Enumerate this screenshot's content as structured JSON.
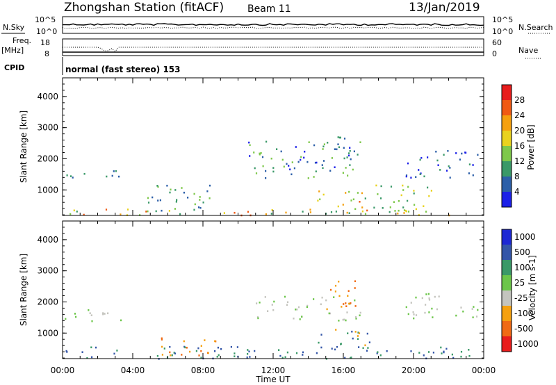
{
  "header": {
    "station": "Zhongshan Station (fitACF)",
    "beam": "Beam 11",
    "date": "13/Jan/2019"
  },
  "labels": {
    "nsky": "N.Sky",
    "nsearch": "N.Search",
    "freq": "Freq.",
    "mhz": "[MHz]",
    "nave": "Nave",
    "cpid": "CPID",
    "cpid_value": "normal (fast stereo) 153",
    "nsky_ticks": [
      "10^5",
      "10^0"
    ],
    "nsearch_ticks": [
      "10^5",
      "10^0"
    ],
    "freq_ticks": [
      "18",
      "8"
    ],
    "nave_ticks": [
      "60",
      "0"
    ]
  },
  "chart_data": [
    {
      "type": "heatmap",
      "name": "power",
      "ylabel": "Slant Range [km]",
      "yticks": [
        1000,
        2000,
        3000,
        4000
      ],
      "ylim": [
        180,
        4600
      ],
      "xticks": [
        "00:00",
        "04:00",
        "08:00",
        "12:00",
        "16:00",
        "20:00",
        "00:00"
      ],
      "colorbar": {
        "label": "Power [dB]",
        "ticks": [
          "28",
          "24",
          "20",
          "16",
          "12",
          "8",
          "4"
        ],
        "colors": [
          "#e81c1c",
          "#f05a14",
          "#f5a00f",
          "#e9d21e",
          "#7ec84b",
          "#3a9968",
          "#2c5fa8",
          "#1c20e8"
        ]
      },
      "echo_regions": [
        {
          "t0": 0.0,
          "t1": 3.5,
          "r0": 1400,
          "r1": 1700,
          "values": [
            8,
            10,
            12
          ]
        },
        {
          "t0": 0.0,
          "t1": 24.0,
          "r0": 200,
          "r1": 400,
          "values": [
            12,
            16,
            20,
            24,
            28
          ]
        },
        {
          "t0": 4.5,
          "t1": 8.5,
          "r0": 300,
          "r1": 1200,
          "values": [
            8,
            12,
            16
          ]
        },
        {
          "t0": 10.5,
          "t1": 17.0,
          "r0": 1400,
          "r1": 2600,
          "values": [
            4,
            8,
            12,
            16
          ]
        },
        {
          "t0": 14.5,
          "t1": 17.5,
          "r0": 400,
          "r1": 1000,
          "values": [
            16,
            20,
            24,
            28
          ]
        },
        {
          "t0": 15.5,
          "t1": 16.5,
          "r0": 2000,
          "r1": 3200,
          "values": [
            8,
            12
          ]
        },
        {
          "t0": 19.5,
          "t1": 23.8,
          "r0": 1400,
          "r1": 2300,
          "values": [
            4,
            8,
            12
          ]
        },
        {
          "t0": 17.0,
          "t1": 21.0,
          "r0": 300,
          "r1": 1200,
          "values": [
            12,
            16,
            20
          ]
        }
      ]
    },
    {
      "type": "heatmap",
      "name": "velocity",
      "ylabel": "Slant Range [km]",
      "yticks": [
        1000,
        2000,
        3000,
        4000
      ],
      "ylim": [
        180,
        4600
      ],
      "xticks": [
        "00:00",
        "04:00",
        "08:00",
        "12:00",
        "16:00",
        "20:00",
        "00:00"
      ],
      "xlabel": "Time UT",
      "colorbar": {
        "label": "Velocity [m s-1]",
        "ticks": [
          "1000",
          "500",
          "100",
          "25",
          "-25",
          "-100",
          "-500",
          "-1000"
        ],
        "colors": [
          "#1d28d4",
          "#3456a8",
          "#3a9968",
          "#6cc64a",
          "#c4c4be",
          "#f5a00f",
          "#f06a14",
          "#e81c1c"
        ]
      },
      "echo_regions": [
        {
          "t0": 0.0,
          "t1": 3.5,
          "r0": 1400,
          "r1": 1800,
          "values": [
            -25,
            25
          ]
        },
        {
          "t0": 0.0,
          "t1": 24.0,
          "r0": 200,
          "r1": 600,
          "values": [
            100,
            500
          ]
        },
        {
          "t0": 5.5,
          "t1": 9.0,
          "r0": 300,
          "r1": 900,
          "values": [
            -100,
            -500
          ]
        },
        {
          "t0": 11.0,
          "t1": 17.0,
          "r0": 1400,
          "r1": 2200,
          "values": [
            -25,
            25
          ]
        },
        {
          "t0": 14.5,
          "t1": 17.5,
          "r0": 500,
          "r1": 1200,
          "values": [
            100,
            500,
            -100
          ]
        },
        {
          "t0": 15.0,
          "t1": 16.8,
          "r0": 1600,
          "r1": 2700,
          "values": [
            -100,
            -500
          ]
        },
        {
          "t0": 19.5,
          "t1": 23.8,
          "r0": 1500,
          "r1": 2300,
          "values": [
            -25,
            25
          ]
        }
      ]
    }
  ],
  "xaxis": {
    "label": "Time UT"
  }
}
